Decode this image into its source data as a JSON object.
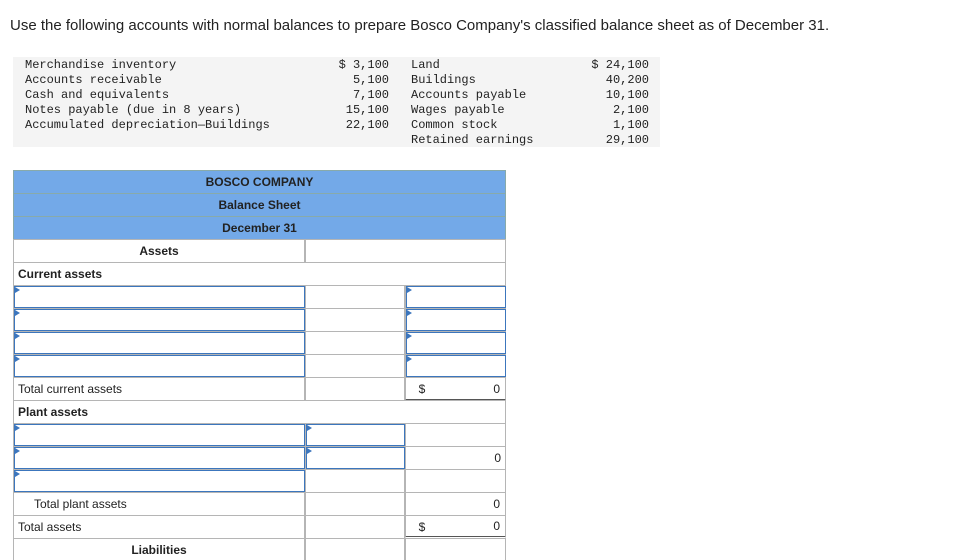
{
  "instructions": "Use the following accounts with normal balances to prepare Bosco Company's classified balance sheet as of December 31.",
  "accounts": {
    "left": [
      {
        "name": "Merchandise inventory",
        "amount": "$ 3,100"
      },
      {
        "name": "Accounts receivable",
        "amount": "5,100"
      },
      {
        "name": "Cash and equivalents",
        "amount": "7,100"
      },
      {
        "name": "Notes payable (due in 8 years)",
        "amount": "15,100"
      },
      {
        "name": "Accumulated depreciation—Buildings",
        "amount": "22,100"
      }
    ],
    "right": [
      {
        "name": "Land",
        "amount": "$ 24,100"
      },
      {
        "name": "Buildings",
        "amount": "40,200"
      },
      {
        "name": "Accounts payable",
        "amount": "10,100"
      },
      {
        "name": "Wages payable",
        "amount": "2,100"
      },
      {
        "name": "Common stock",
        "amount": "1,100"
      },
      {
        "name": "Retained earnings",
        "amount": "29,100"
      }
    ]
  },
  "balance_sheet": {
    "company": "BOSCO COMPANY",
    "title": "Balance Sheet",
    "date": "December 31",
    "assets_heading": "Assets",
    "current_assets_label": "Current assets",
    "total_current_assets": {
      "label": "Total current assets",
      "currency": "$",
      "amount": 0
    },
    "plant_assets_label": "Plant assets",
    "plant_subtotal": 0,
    "total_plant_assets": {
      "label": "Total plant assets",
      "amount": 0
    },
    "total_assets": {
      "label": "Total assets",
      "currency": "$",
      "amount": 0
    },
    "liabilities_heading": "Liabilities"
  }
}
